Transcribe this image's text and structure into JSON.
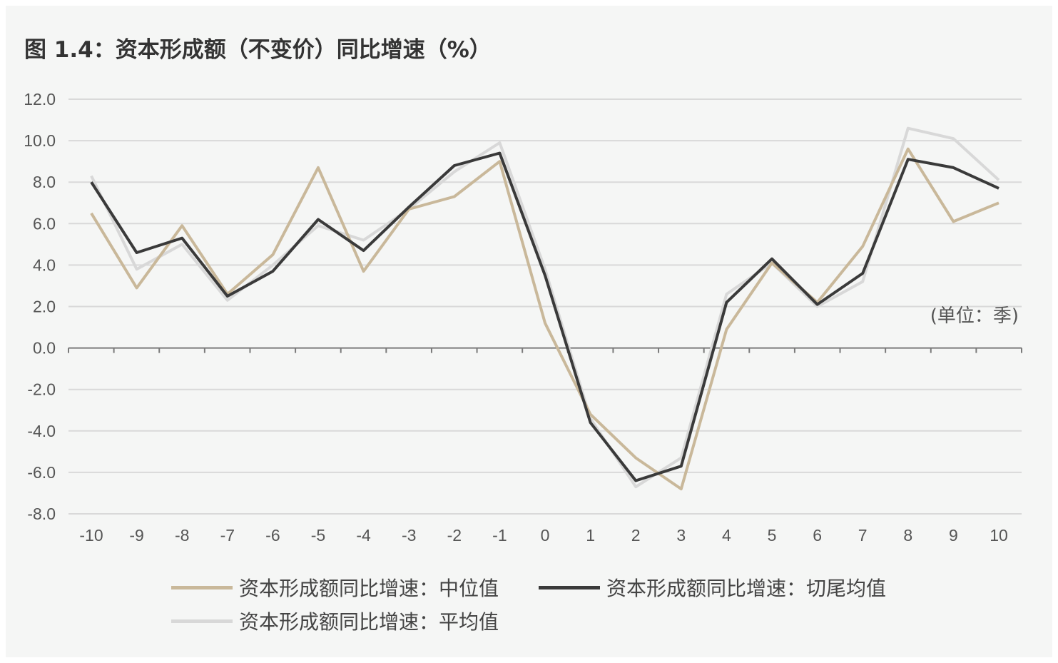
{
  "title": "图 1.4：资本形成额（不变价）同比增速（%）",
  "unit_note": "(单位：季)",
  "chart_data": {
    "type": "line",
    "title": "图 1.4：资本形成额（不变价）同比增速（%）",
    "x": [
      -10,
      -9,
      -8,
      -7,
      -6,
      -5,
      -4,
      -3,
      -2,
      -1,
      0,
      1,
      2,
      3,
      4,
      5,
      6,
      7,
      8,
      9,
      10
    ],
    "ylim": [
      -8,
      12
    ],
    "yticks": [
      "12.0",
      "10.0",
      "8.0",
      "6.0",
      "4.0",
      "2.0",
      "0.0",
      "-2.0",
      "-4.0",
      "-6.0",
      "-8.0"
    ],
    "xticks": [
      "-10",
      "-9",
      "-8",
      "-7",
      "-6",
      "-5",
      "-4",
      "-3",
      "-2",
      "-1",
      "0",
      "1",
      "2",
      "3",
      "4",
      "5",
      "6",
      "7",
      "8",
      "9",
      "10"
    ],
    "grid": true,
    "legend_position": "bottom",
    "series": [
      {
        "name": "资本形成额同比增速：中位值",
        "color": "#c9b89a",
        "values": [
          6.5,
          2.9,
          5.9,
          2.6,
          4.5,
          8.7,
          3.7,
          6.7,
          7.3,
          9.0,
          1.2,
          -3.2,
          -5.3,
          -6.8,
          0.9,
          4.1,
          2.2,
          4.9,
          9.6,
          6.1,
          7.0
        ]
      },
      {
        "name": "资本形成额同比增速：切尾均值",
        "color": "#3a3a3a",
        "values": [
          8.0,
          4.6,
          5.3,
          2.5,
          3.7,
          6.2,
          4.7,
          6.8,
          8.8,
          9.4,
          3.5,
          -3.6,
          -6.4,
          -5.7,
          2.2,
          4.3,
          2.1,
          3.6,
          9.1,
          8.7,
          7.7
        ]
      },
      {
        "name": "资本形成额同比增速：平均值",
        "color": "#d8d8d8",
        "values": [
          8.3,
          3.8,
          5.0,
          2.3,
          4.0,
          5.9,
          5.2,
          6.7,
          8.5,
          9.9,
          3.8,
          -3.4,
          -6.7,
          -5.3,
          2.6,
          4.1,
          2.0,
          3.2,
          10.6,
          10.1,
          8.1
        ]
      }
    ]
  },
  "legend": {
    "items": [
      {
        "label": "资本形成额同比增速：中位值",
        "color": "#c9b89a"
      },
      {
        "label": "资本形成额同比增速：切尾均值",
        "color": "#3a3a3a"
      },
      {
        "label": "资本形成额同比增速：平均值",
        "color": "#d8d8d8"
      }
    ]
  }
}
